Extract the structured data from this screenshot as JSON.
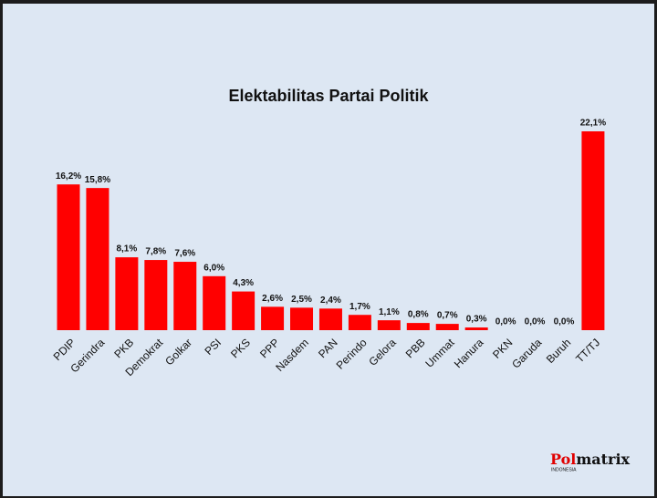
{
  "chart_data": {
    "type": "bar",
    "title": "Elektabilitas Partai Politik",
    "categories": [
      "PDIP",
      "Gerindra",
      "PKB",
      "Demokrat",
      "Golkar",
      "PSI",
      "PKS",
      "PPP",
      "Nasdem",
      "PAN",
      "Perindo",
      "Gelora",
      "PBB",
      "Ummat",
      "Hanura",
      "PKN",
      "Garuda",
      "Buruh",
      "TT/TJ"
    ],
    "values": [
      16.2,
      15.8,
      8.1,
      7.8,
      7.6,
      6.0,
      4.3,
      2.6,
      2.5,
      2.4,
      1.7,
      1.1,
      0.8,
      0.7,
      0.3,
      0.0,
      0.0,
      0.0,
      22.1
    ],
    "value_labels": [
      "16,2%",
      "15,8%",
      "8,1%",
      "7,8%",
      "7,6%",
      "6,0%",
      "4,3%",
      "2,6%",
      "2,5%",
      "2,4%",
      "1,7%",
      "1,1%",
      "0,8%",
      "0,7%",
      "0,3%",
      "0,0%",
      "0,0%",
      "0,0%",
      "22,1%"
    ],
    "color": "#ff0000"
  },
  "brand": {
    "name_red": "Pol",
    "name_black": "matrix",
    "tagline": "INDONESIA"
  }
}
